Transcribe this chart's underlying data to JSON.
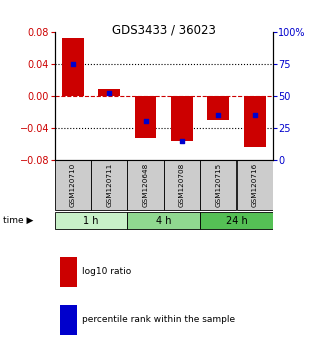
{
  "title": "GDS3433 / 36023",
  "samples": [
    "GSM120710",
    "GSM120711",
    "GSM120648",
    "GSM120708",
    "GSM120715",
    "GSM120716"
  ],
  "log10_ratio": [
    0.072,
    0.008,
    -0.053,
    -0.057,
    -0.03,
    -0.064
  ],
  "percentile_rank": [
    75,
    52,
    30,
    15,
    35,
    35
  ],
  "time_groups": [
    {
      "label": "1 h",
      "start": 0,
      "end": 2,
      "color": "#c8f0c8"
    },
    {
      "label": "4 h",
      "start": 2,
      "end": 4,
      "color": "#90d890"
    },
    {
      "label": "24 h",
      "start": 4,
      "end": 6,
      "color": "#55c055"
    }
  ],
  "ylim_left": [
    -0.08,
    0.08
  ],
  "ylim_right": [
    0,
    100
  ],
  "yticks_left": [
    -0.08,
    -0.04,
    0,
    0.04,
    0.08
  ],
  "yticks_right": [
    0,
    25,
    50,
    75,
    100
  ],
  "ytick_labels_right": [
    "0",
    "25",
    "50",
    "75",
    "100%"
  ],
  "bar_color": "#cc0000",
  "dot_color": "#0000cc",
  "zero_line_color": "#cc0000",
  "grid_color": "#000000",
  "title_color": "#000000",
  "left_tick_color": "#cc0000",
  "right_tick_color": "#0000cc",
  "sample_box_color": "#cccccc",
  "bar_width": 0.6
}
